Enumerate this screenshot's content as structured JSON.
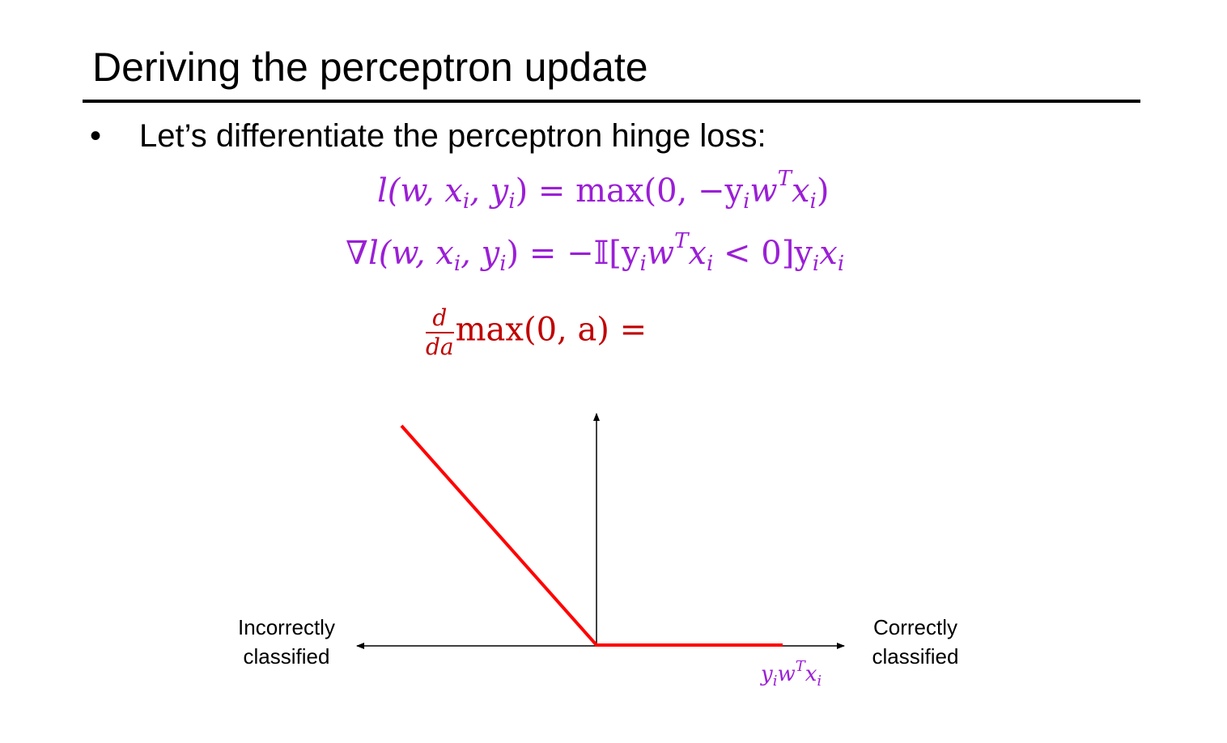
{
  "slide": {
    "title": "Deriving the perceptron update",
    "bullet_marker": "•",
    "bullet_text": "Let’s differentiate the perceptron hinge loss:"
  },
  "equations": {
    "loss": {
      "lhs": "l(w, x",
      "lhs_sub_i": "i",
      "lhs_mid": ", y",
      "lhs_sub_i2": "i",
      "rhs_open": ") = max(0, −y",
      "rhs_sub_i": "i",
      "rhs_w": "w",
      "rhs_sup_T": "T",
      "rhs_x": "x",
      "rhs_sub_i3": "i",
      "rhs_close": ")"
    },
    "gradient": {
      "nabla": "∇",
      "lhs": "l(w, x",
      "lhs_sub_i": "i",
      "lhs_mid": ", y",
      "lhs_sub_i2": "i",
      "rhs_open": ") = −𝕀[y",
      "rhs_sub_i": "i",
      "rhs_w": "w",
      "rhs_sup_T": "T",
      "rhs_x": "x",
      "rhs_sub_i3": "i",
      "rhs_lt": " < 0]y",
      "rhs_sub_i4": "i",
      "rhs_x2": "x",
      "rhs_sub_i5": "i"
    },
    "derivative": {
      "num": "d",
      "den": "da",
      "body": "max(0, a) ="
    }
  },
  "plot": {
    "left_label_line1": "Incorrectly",
    "left_label_line2": "classified",
    "right_label_line1": "Correctly",
    "right_label_line2": "classified",
    "x_axis_label": {
      "y": "y",
      "sub1": "i",
      "w": "w",
      "sup": "T",
      "x": "x",
      "sub2": "i"
    },
    "curve_color": "#ff0000",
    "axis_color": "#000000"
  },
  "colors": {
    "equation_purple": "#9b1fd6",
    "equation_red": "#c00000"
  }
}
